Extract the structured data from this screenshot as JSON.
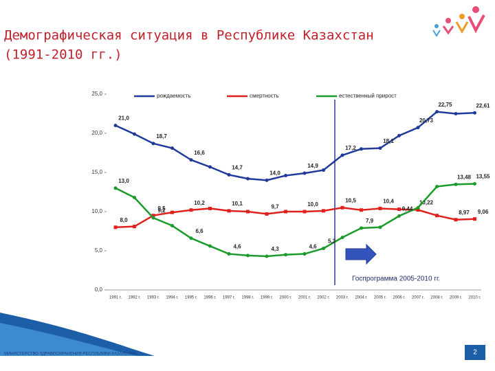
{
  "chart_data": {
    "type": "line",
    "title": "Демографическая ситуация в Республике Казахстан",
    "subtitle": "(1991-2010 гг.)",
    "categories": [
      "1991 г.",
      "1992 г.",
      "1993 г.",
      "1994 г.",
      "1995 г.",
      "1996 г.",
      "1997 г.",
      "1998 г.",
      "1999 г.",
      "2000 г.",
      "2001 г.",
      "2002 г.",
      "2003 г.",
      "2004 г.",
      "2005 г.",
      "2006 г.",
      "2007 г.",
      "2008 г.",
      "2009 г.",
      "2010 г."
    ],
    "series": [
      {
        "name": "рождаемость",
        "color": "#1f3a9a",
        "values": [
          21.0,
          19.9,
          18.7,
          18.1,
          16.6,
          15.7,
          14.7,
          14.2,
          14.0,
          14.6,
          14.9,
          15.3,
          17.2,
          18.0,
          18.1,
          19.7,
          20.73,
          22.75,
          22.5,
          22.61
        ],
        "value_labels": [
          "21,0",
          null,
          "18,7",
          null,
          "16,6",
          null,
          "14,7",
          null,
          "14,0",
          null,
          "14,9",
          null,
          "17,2",
          null,
          "18,1",
          null,
          "20,73",
          "22,75",
          null,
          "22,61"
        ]
      },
      {
        "name": "смертность",
        "color": "#e0201c",
        "values": [
          8.0,
          8.1,
          9.5,
          9.9,
          10.2,
          10.4,
          10.1,
          10.0,
          9.7,
          10.0,
          10.0,
          10.1,
          10.5,
          10.2,
          10.4,
          10.3,
          10.22,
          9.5,
          8.97,
          9.06
        ],
        "value_labels": [
          "8,0",
          null,
          "9,5",
          null,
          "10,2",
          null,
          "10,1",
          null,
          "9,7",
          null,
          "10,0",
          null,
          "10,5",
          null,
          "10,4",
          null,
          "10,22",
          null,
          "8,97",
          "9,06"
        ]
      },
      {
        "name": "естественный прирост",
        "color": "#1a9a2a",
        "values": [
          13.0,
          11.8,
          9.2,
          8.2,
          6.6,
          5.6,
          4.6,
          4.4,
          4.3,
          4.5,
          4.6,
          5.3,
          6.7,
          7.9,
          8.0,
          9.44,
          10.5,
          13.2,
          13.48,
          13.55
        ],
        "value_labels": [
          "13,0",
          null,
          "9,2",
          null,
          "6,6",
          null,
          "4,6",
          null,
          "4,3",
          null,
          "4,6",
          "5,3",
          null,
          "7,9",
          null,
          "9,44",
          null,
          null,
          "13,48",
          "13,55"
        ]
      }
    ],
    "ylim": [
      0,
      25
    ],
    "yticks": [
      {
        "value": 0,
        "label": "0,0"
      },
      {
        "value": 5,
        "label": "5,0"
      },
      {
        "value": 10,
        "label": "10,0"
      },
      {
        "value": 15,
        "label": "15,0"
      },
      {
        "value": 20,
        "label": "20,0"
      },
      {
        "value": 25,
        "label": "25,0"
      }
    ],
    "annotation": "Госпрограмма 2005-2010 гг.",
    "footer": "МИНИСТЕРСТВО ЗДРАВООХРАНЕНИЯ РЕСПУБЛИКИ КАЗАХСТАН",
    "page_number": "2"
  }
}
